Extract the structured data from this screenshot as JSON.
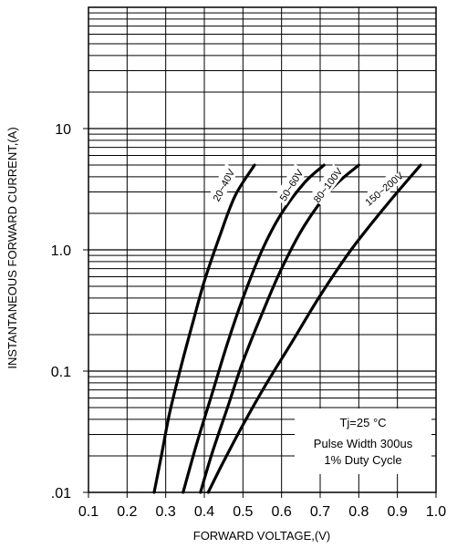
{
  "chart_data": {
    "type": "line",
    "title": "",
    "xlabel": "FORWARD VOLTAGE,(V)",
    "ylabel": "INSTANTANEOUS FORWARD CURRENT,(A)",
    "xlim": [
      0.1,
      1.0
    ],
    "ylim": [
      0.01,
      100
    ],
    "y_scale": "log",
    "grid": true,
    "x_ticks": [
      "0.1",
      "0.2",
      "0.3",
      "0.4",
      "0.5",
      "0.6",
      "0.7",
      "0.8",
      "0.9",
      "1.0"
    ],
    "y_ticks": [
      ".01",
      "0.1",
      "1.0",
      "10"
    ],
    "series": [
      {
        "name": "20~40V",
        "x": [
          0.27,
          0.29,
          0.31,
          0.34,
          0.37,
          0.4,
          0.44,
          0.48,
          0.53
        ],
        "y": [
          0.01,
          0.021,
          0.045,
          0.11,
          0.25,
          0.55,
          1.3,
          2.8,
          5.0
        ]
      },
      {
        "name": "50~60V",
        "x": [
          0.345,
          0.38,
          0.42,
          0.46,
          0.5,
          0.55,
          0.6,
          0.66,
          0.71
        ],
        "y": [
          0.01,
          0.025,
          0.065,
          0.17,
          0.4,
          1.0,
          2.0,
          3.6,
          5.0
        ]
      },
      {
        "name": "80~100V",
        "x": [
          0.39,
          0.42,
          0.46,
          0.5,
          0.55,
          0.6,
          0.66,
          0.73,
          0.8
        ],
        "y": [
          0.01,
          0.021,
          0.05,
          0.12,
          0.3,
          0.7,
          1.6,
          3.2,
          5.0
        ]
      },
      {
        "name": "150~200V",
        "x": [
          0.41,
          0.45,
          0.5,
          0.56,
          0.63,
          0.7,
          0.78,
          0.87,
          0.96
        ],
        "y": [
          0.01,
          0.018,
          0.036,
          0.078,
          0.18,
          0.42,
          1.0,
          2.3,
          5.0
        ]
      }
    ],
    "annotation_lines": [
      "Tj=25 °C",
      "Pulse Width 300us",
      "1% Duty Cycle"
    ]
  }
}
